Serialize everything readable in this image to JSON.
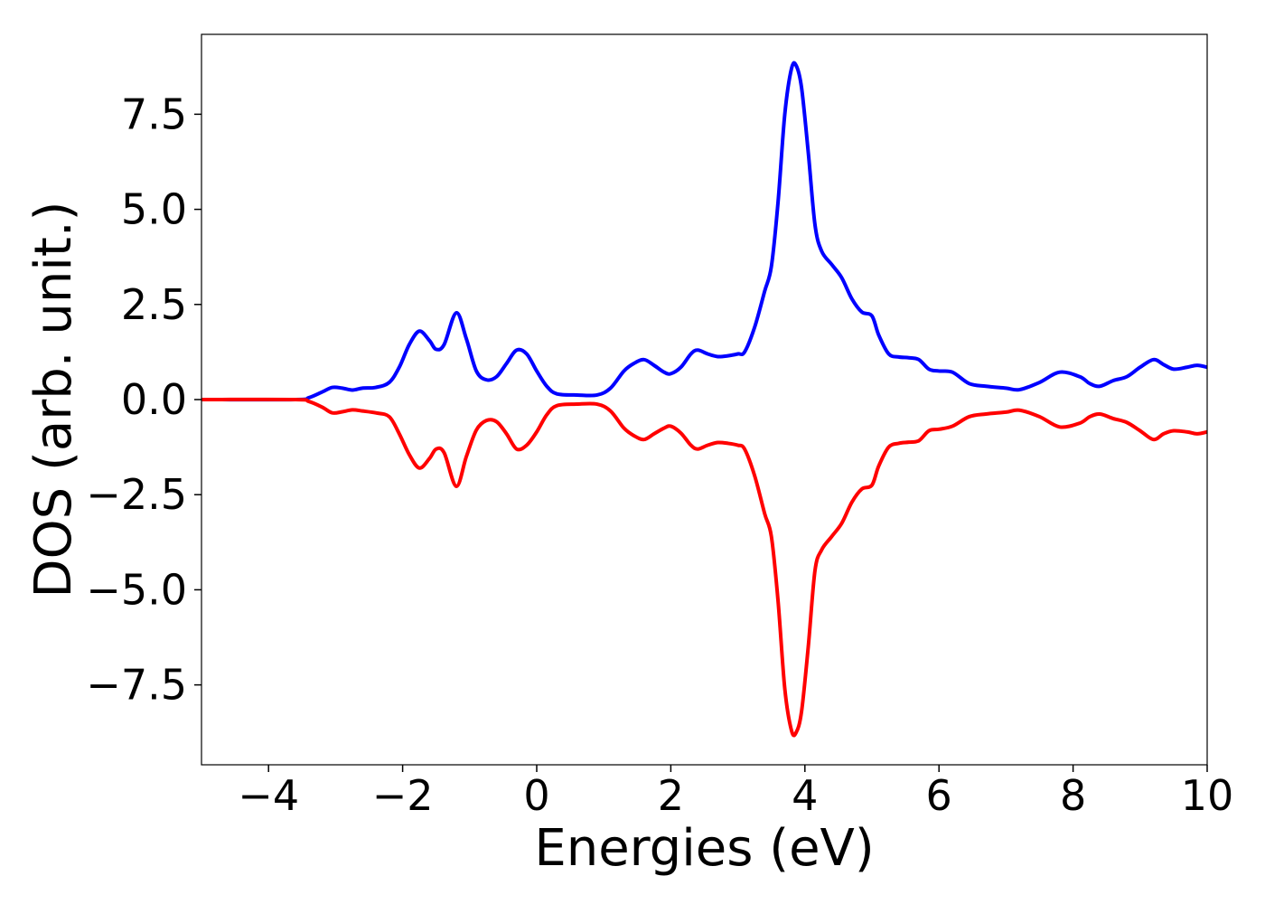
{
  "chart_data": {
    "type": "line",
    "xlabel": "Energies (eV)",
    "ylabel": "DOS (arb. unit.)",
    "xlim": [
      -5,
      10
    ],
    "ylim": [
      -9.6,
      9.6
    ],
    "x_ticks": [
      -4,
      -2,
      0,
      2,
      4,
      6,
      8,
      10
    ],
    "x_tick_labels": [
      "−4",
      "−2",
      "0",
      "2",
      "4",
      "6",
      "8",
      "10"
    ],
    "y_ticks": [
      7.5,
      5.0,
      2.5,
      0.0,
      -2.5,
      -5.0,
      -7.5
    ],
    "y_tick_labels": [
      "7.5",
      "5.0",
      "2.5",
      "0.0",
      "−2.5",
      "−5.0",
      "−7.5"
    ],
    "grid": false,
    "legend": "none",
    "series": [
      {
        "color": "#0000ff",
        "x": [
          -5.0,
          -3.6,
          -3.4,
          -3.2,
          -3.05,
          -2.9,
          -2.75,
          -2.6,
          -2.4,
          -2.2,
          -2.05,
          -1.9,
          -1.75,
          -1.6,
          -1.5,
          -1.38,
          -1.2,
          -1.05,
          -0.9,
          -0.75,
          -0.6,
          -0.45,
          -0.3,
          -0.15,
          0.0,
          0.15,
          0.3,
          0.6,
          0.9,
          1.1,
          1.3,
          1.45,
          1.6,
          1.75,
          1.9,
          2.0,
          2.15,
          2.3,
          2.4,
          2.55,
          2.7,
          2.85,
          3.0,
          3.1,
          3.25,
          3.4,
          3.5,
          3.6,
          3.7,
          3.8,
          3.87,
          3.95,
          4.05,
          4.15,
          4.25,
          4.4,
          4.55,
          4.7,
          4.85,
          5.0,
          5.1,
          5.25,
          5.4,
          5.55,
          5.7,
          5.85,
          6.0,
          6.2,
          6.45,
          6.7,
          7.0,
          7.2,
          7.5,
          7.8,
          8.1,
          8.25,
          8.4,
          8.6,
          8.8,
          9.0,
          9.2,
          9.35,
          9.5,
          9.7,
          9.85,
          10.0
        ],
        "y": [
          0.0,
          0.0,
          0.05,
          0.2,
          0.32,
          0.3,
          0.25,
          0.3,
          0.32,
          0.45,
          0.85,
          1.45,
          1.8,
          1.55,
          1.32,
          1.45,
          2.28,
          1.6,
          0.75,
          0.52,
          0.6,
          0.95,
          1.3,
          1.2,
          0.75,
          0.35,
          0.15,
          0.12,
          0.12,
          0.3,
          0.75,
          0.95,
          1.05,
          0.9,
          0.72,
          0.68,
          0.85,
          1.2,
          1.3,
          1.2,
          1.13,
          1.15,
          1.2,
          1.25,
          1.9,
          2.85,
          3.5,
          5.2,
          7.5,
          8.7,
          8.78,
          8.2,
          6.5,
          4.6,
          3.9,
          3.55,
          3.2,
          2.65,
          2.3,
          2.2,
          1.7,
          1.2,
          1.12,
          1.1,
          1.05,
          0.8,
          0.75,
          0.72,
          0.42,
          0.35,
          0.3,
          0.26,
          0.45,
          0.72,
          0.6,
          0.42,
          0.35,
          0.5,
          0.6,
          0.85,
          1.05,
          0.92,
          0.8,
          0.85,
          0.9,
          0.85
        ]
      },
      {
        "color": "#ff0000",
        "x": [
          -5.0,
          -3.6,
          -3.4,
          -3.2,
          -3.05,
          -2.9,
          -2.75,
          -2.6,
          -2.4,
          -2.2,
          -2.05,
          -1.9,
          -1.75,
          -1.6,
          -1.5,
          -1.38,
          -1.2,
          -1.05,
          -0.9,
          -0.75,
          -0.6,
          -0.45,
          -0.3,
          -0.15,
          0.0,
          0.15,
          0.3,
          0.6,
          0.9,
          1.1,
          1.3,
          1.45,
          1.6,
          1.75,
          1.9,
          2.0,
          2.15,
          2.3,
          2.4,
          2.55,
          2.7,
          2.85,
          3.0,
          3.1,
          3.25,
          3.4,
          3.5,
          3.6,
          3.7,
          3.8,
          3.87,
          3.95,
          4.05,
          4.15,
          4.25,
          4.4,
          4.55,
          4.7,
          4.85,
          5.0,
          5.1,
          5.25,
          5.4,
          5.55,
          5.7,
          5.85,
          6.0,
          6.2,
          6.45,
          6.7,
          7.0,
          7.2,
          7.5,
          7.8,
          8.1,
          8.25,
          8.4,
          8.6,
          8.8,
          9.0,
          9.2,
          9.35,
          9.5,
          9.7,
          9.85,
          10.0
        ],
        "y": [
          0.0,
          0.0,
          -0.05,
          -0.2,
          -0.35,
          -0.32,
          -0.27,
          -0.3,
          -0.35,
          -0.45,
          -0.9,
          -1.45,
          -1.8,
          -1.55,
          -1.3,
          -1.4,
          -2.28,
          -1.5,
          -0.8,
          -0.55,
          -0.58,
          -0.9,
          -1.3,
          -1.2,
          -0.85,
          -0.4,
          -0.16,
          -0.12,
          -0.12,
          -0.3,
          -0.75,
          -0.95,
          -1.05,
          -0.9,
          -0.75,
          -0.7,
          -0.88,
          -1.2,
          -1.3,
          -1.2,
          -1.13,
          -1.15,
          -1.2,
          -1.3,
          -2.0,
          -3.0,
          -3.6,
          -5.3,
          -7.6,
          -8.7,
          -8.75,
          -8.2,
          -6.5,
          -4.5,
          -3.95,
          -3.6,
          -3.25,
          -2.7,
          -2.35,
          -2.25,
          -1.75,
          -1.25,
          -1.15,
          -1.12,
          -1.08,
          -0.82,
          -0.78,
          -0.7,
          -0.45,
          -0.38,
          -0.33,
          -0.28,
          -0.45,
          -0.72,
          -0.62,
          -0.45,
          -0.38,
          -0.5,
          -0.6,
          -0.82,
          -1.05,
          -0.9,
          -0.82,
          -0.85,
          -0.9,
          -0.85
        ]
      }
    ]
  }
}
